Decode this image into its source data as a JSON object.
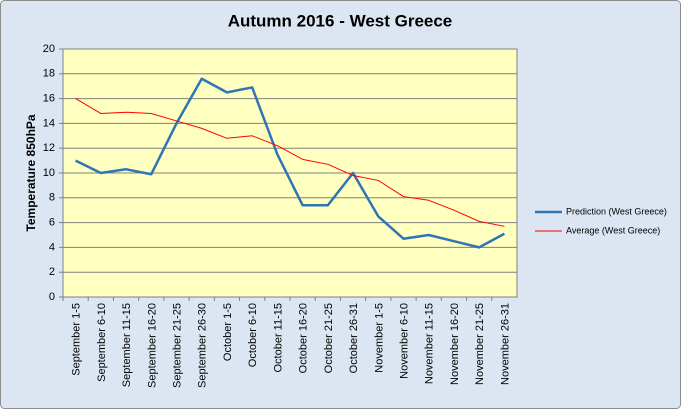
{
  "chart_data": {
    "type": "line",
    "title": "Autumn 2016 - West Greece",
    "y_label": "Temperature 850hPa",
    "categories": [
      "September 1-5",
      "September 6-10",
      "September 11-15",
      "September 16-20",
      "September 21-25",
      "September 26-30",
      "October 1-5",
      "October 6-10",
      "October 11-15",
      "October 16-20",
      "October 21-25",
      "October 26-31",
      "November 1-5",
      "November 6-10",
      "November 11-15",
      "November 16-20",
      "November 21-25",
      "November 26-31"
    ],
    "series": [
      {
        "name": "Prediction (West Greece)",
        "color": "#2e75b6",
        "values": [
          11.0,
          10.0,
          10.3,
          9.9,
          14.0,
          17.6,
          16.5,
          16.9,
          11.5,
          7.4,
          7.4,
          10.0,
          6.5,
          4.7,
          5.0,
          4.5,
          4.0,
          5.1
        ]
      },
      {
        "name": "Average (West Greece)",
        "color": "#ff0000",
        "values": [
          16.0,
          14.8,
          14.9,
          14.8,
          14.2,
          13.6,
          12.8,
          13.0,
          12.2,
          11.1,
          10.7,
          9.8,
          9.4,
          8.1,
          7.8,
          7.0,
          6.1,
          5.7
        ]
      }
    ],
    "ylim": [
      0,
      20
    ],
    "yticks": [
      0,
      2,
      4,
      6,
      8,
      10,
      12,
      14,
      16,
      18,
      20
    ],
    "grid": true,
    "legend": "right"
  }
}
